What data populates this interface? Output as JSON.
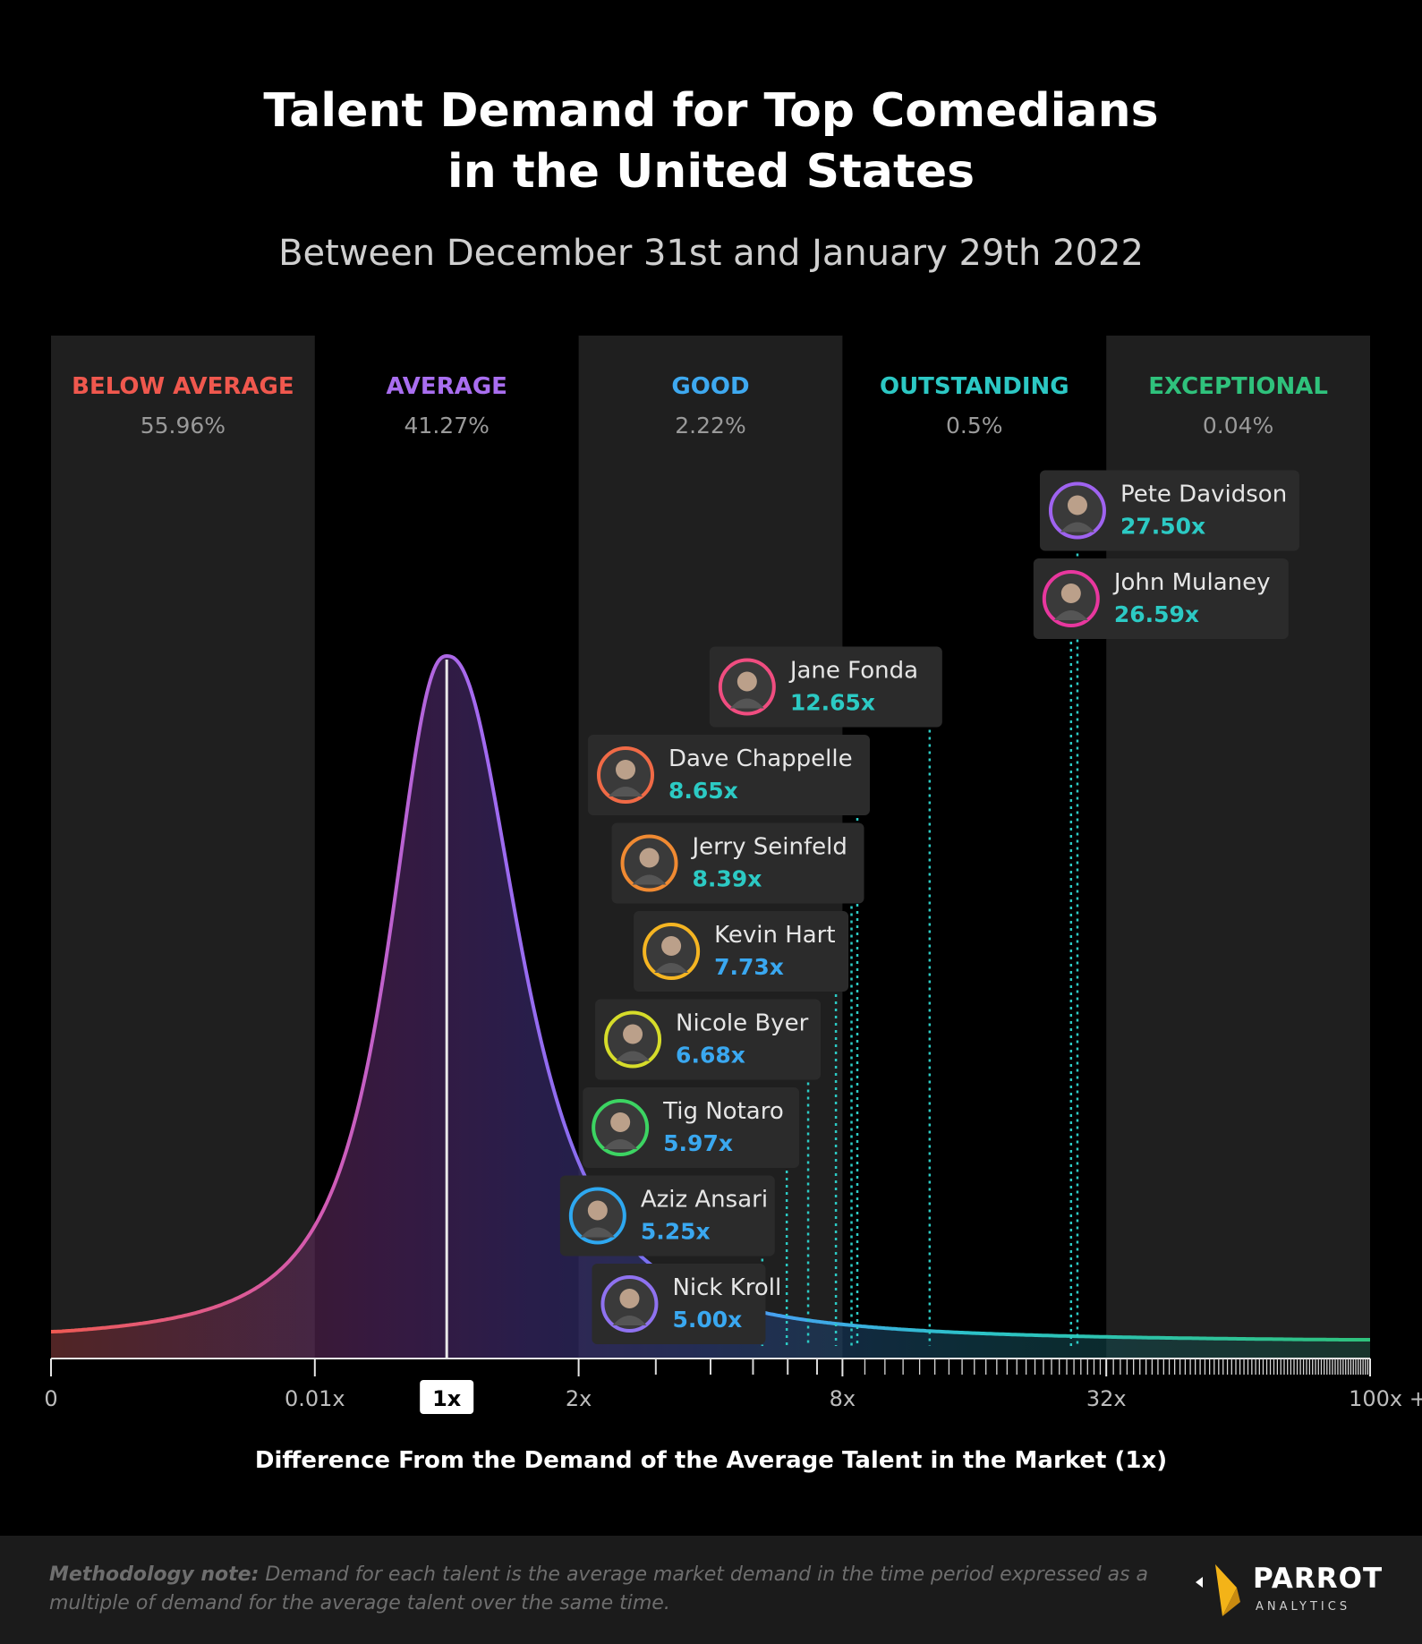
{
  "title_line1": "Talent Demand for Top Comedians",
  "title_line2": "in the United States",
  "subtitle": "Between December 31st and January 29th 2022",
  "xlabel": "Difference From the Demand of the Average Talent in the Market (1x)",
  "methodology_label": "Methodology note:",
  "methodology_text": " Demand for each talent is the average market demand in the time period expressed as a multiple of demand for the average talent over the same time.",
  "logo": {
    "name": "PARROT",
    "sub": "ANALYTICS"
  },
  "chart_data": {
    "type": "area",
    "x_axis": {
      "scale": "log-piecewise",
      "tick_labels": [
        "0",
        "0.01x",
        "1x",
        "2x",
        "8x",
        "32x",
        "100x +"
      ],
      "highlight_tick": "1x"
    },
    "bands": [
      {
        "name": "BELOW AVERAGE",
        "share": "55.96%",
        "color": "#f0584e"
      },
      {
        "name": "AVERAGE",
        "share": "41.27%",
        "color": "#a96ef0"
      },
      {
        "name": "GOOD",
        "share": "2.22%",
        "color": "#3ea9f0"
      },
      {
        "name": "OUTSTANDING",
        "share": "0.5%",
        "color": "#2cc8c4"
      },
      {
        "name": "EXCEPTIONAL",
        "share": "0.04%",
        "color": "#2fc27c"
      }
    ],
    "distribution": {
      "peak_x": 1,
      "description_of_shape": "single peak at 1x, long right tail"
    },
    "talents": [
      {
        "name": "Pete Davidson",
        "value": 27.5,
        "label": "27.50x",
        "ring": "#9f63f0",
        "value_color": "#2ccac4"
      },
      {
        "name": "John Mulaney",
        "value": 26.59,
        "label": "26.59x",
        "ring": "#e8379e",
        "value_color": "#2ccac4"
      },
      {
        "name": "Jane Fonda",
        "value": 12.65,
        "label": "12.65x",
        "ring": "#f04d80",
        "value_color": "#2ccac4"
      },
      {
        "name": "Dave Chappelle",
        "value": 8.65,
        "label": "8.65x",
        "ring": "#f06a46",
        "value_color": "#2ccac4"
      },
      {
        "name": "Jerry Seinfeld",
        "value": 8.39,
        "label": "8.39x",
        "ring": "#f08a32",
        "value_color": "#2ccac4"
      },
      {
        "name": "Kevin Hart",
        "value": 7.73,
        "label": "7.73x",
        "ring": "#f5b522",
        "value_color": "#3aa8f0"
      },
      {
        "name": "Nicole Byer",
        "value": 6.68,
        "label": "6.68x",
        "ring": "#d6dc2a",
        "value_color": "#3aa8f0"
      },
      {
        "name": "Tig Notaro",
        "value": 5.97,
        "label": "5.97x",
        "ring": "#3cd462",
        "value_color": "#3aa8f0"
      },
      {
        "name": "Aziz Ansari",
        "value": 5.25,
        "label": "5.25x",
        "ring": "#2ea8f0",
        "value_color": "#3aa8f0"
      },
      {
        "name": "Nick Kroll",
        "value": 5.0,
        "label": "5.00x",
        "ring": "#8f72f0",
        "value_color": "#3aa8f0"
      }
    ]
  }
}
